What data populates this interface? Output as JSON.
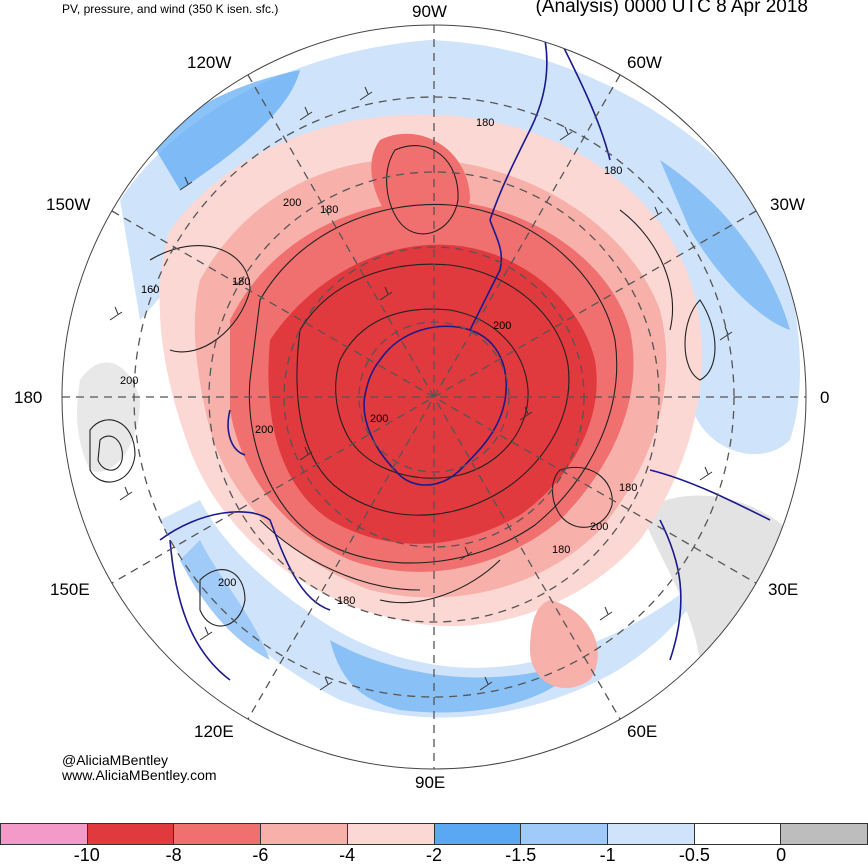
{
  "header": {
    "left_title": "PV, pressure, and wind (350 K isen. sfc.)",
    "right_title": "(Analysis) 0000 UTC 8 Apr 2018"
  },
  "longitudes": {
    "top": "90W",
    "upper_left": "120W",
    "upper_right": "60W",
    "left_upper": "150W",
    "right_upper": "30W",
    "left": "180",
    "right": "0",
    "left_lower": "150E",
    "right_lower": "30E",
    "lower_left": "120E",
    "lower_right": "60E",
    "bottom": "90E"
  },
  "contour_labels": [
    "180",
    "180",
    "200",
    "180",
    "180",
    "160",
    "200",
    "200",
    "200",
    "200",
    "180",
    "200",
    "180",
    "180",
    "200"
  ],
  "credits": {
    "handle": "@AliciaMBentley",
    "website": "www.AliciaMBentley.com"
  },
  "colorbar": {
    "colors": [
      "#f49ac8",
      "#e0393e",
      "#f07070",
      "#f8b0aa",
      "#fcd8d4",
      "#5aa8f4",
      "#a0caf8",
      "#cfe3fb",
      "#ffffff",
      "#bdbdbd"
    ],
    "ticks": [
      "-10",
      "-8",
      "-6",
      "-4",
      "-2",
      "-1.5",
      "-1",
      "-0.5",
      "0"
    ]
  },
  "map_colors": {
    "strong_negative": "#e0393e",
    "moderate_negative": "#f07070",
    "weak_negative": "#f8b0aa",
    "blue_strong": "#5aa8f4",
    "blue_light": "#cfe3fb",
    "coastline": "#1a1a8c"
  }
}
